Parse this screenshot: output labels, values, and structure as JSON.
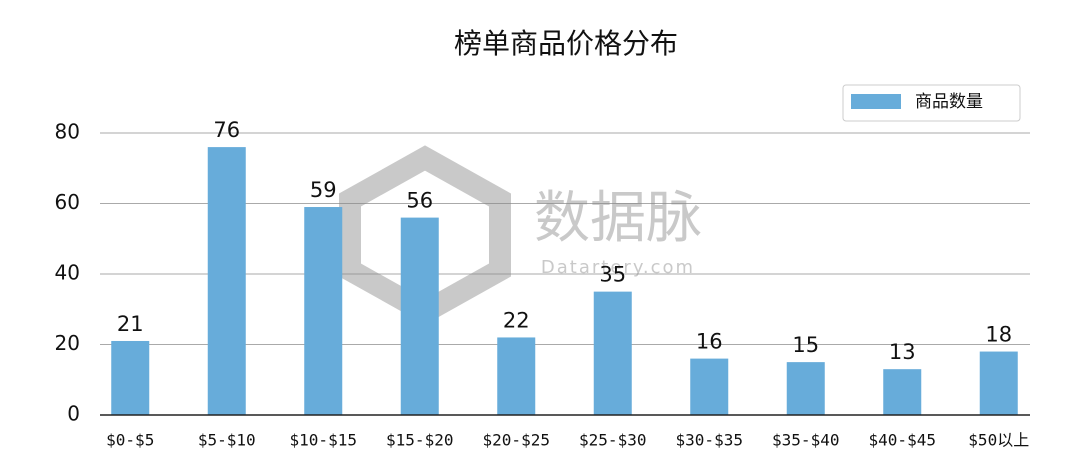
{
  "chart_data": {
    "type": "bar",
    "title": "榜单商品价格分布",
    "categories": [
      "$0-$5",
      "$5-$10",
      "$10-$15",
      "$15-$20",
      "$20-$25",
      "$25-$30",
      "$30-$35",
      "$35-$40",
      "$40-$45",
      "$50以上"
    ],
    "series": [
      {
        "name": "商品数量",
        "color": "#67acda",
        "values": [
          21,
          76,
          59,
          56,
          22,
          35,
          16,
          15,
          13,
          18
        ]
      }
    ],
    "ylim": [
      0,
      80
    ],
    "yticks": [
      0,
      20,
      40,
      60,
      80
    ],
    "grid": true,
    "legend": "top-right",
    "watermark": "数据脉",
    "watermark_subtitle": "Datartery.com"
  }
}
